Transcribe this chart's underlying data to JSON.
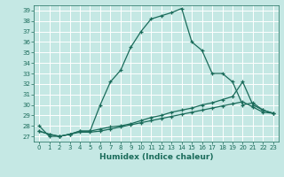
{
  "title": "",
  "xlabel": "Humidex (Indice chaleur)",
  "ylabel": "",
  "bg_color": "#c5e8e4",
  "line_color": "#1a6b5a",
  "grid_color": "#ffffff",
  "xlim": [
    -0.5,
    23.5
  ],
  "ylim": [
    26.5,
    39.5
  ],
  "yticks": [
    27,
    28,
    29,
    30,
    31,
    32,
    33,
    34,
    35,
    36,
    37,
    38,
    39
  ],
  "xticks": [
    0,
    1,
    2,
    3,
    4,
    5,
    6,
    7,
    8,
    9,
    10,
    11,
    12,
    13,
    14,
    15,
    16,
    17,
    18,
    19,
    20,
    21,
    22,
    23
  ],
  "line1_x": [
    0,
    1,
    2,
    3,
    4,
    5,
    6,
    7,
    8,
    9,
    10,
    11,
    12,
    13,
    14,
    15,
    16,
    17,
    18,
    19,
    20,
    21,
    22,
    23
  ],
  "line1_y": [
    28.0,
    27.0,
    27.0,
    27.2,
    27.5,
    27.5,
    30.0,
    32.2,
    33.3,
    35.5,
    37.0,
    38.2,
    38.5,
    38.8,
    39.2,
    36.0,
    35.2,
    33.0,
    33.0,
    32.2,
    30.0,
    30.2,
    29.5,
    29.2
  ],
  "line2_x": [
    0,
    1,
    2,
    3,
    4,
    5,
    6,
    7,
    8,
    9,
    10,
    11,
    12,
    13,
    14,
    15,
    16,
    17,
    18,
    19,
    20,
    21,
    22,
    23
  ],
  "line2_y": [
    27.5,
    27.2,
    27.0,
    27.2,
    27.5,
    27.5,
    27.7,
    27.9,
    28.0,
    28.2,
    28.5,
    28.8,
    29.0,
    29.3,
    29.5,
    29.7,
    30.0,
    30.2,
    30.5,
    30.8,
    32.2,
    30.0,
    29.5,
    29.2
  ],
  "line3_x": [
    0,
    1,
    2,
    3,
    4,
    5,
    6,
    7,
    8,
    9,
    10,
    11,
    12,
    13,
    14,
    15,
    16,
    17,
    18,
    19,
    20,
    21,
    22,
    23
  ],
  "line3_y": [
    27.5,
    27.2,
    27.0,
    27.2,
    27.4,
    27.4,
    27.5,
    27.7,
    27.9,
    28.1,
    28.3,
    28.5,
    28.7,
    28.9,
    29.1,
    29.3,
    29.5,
    29.7,
    29.9,
    30.1,
    30.3,
    29.8,
    29.3,
    29.2
  ],
  "label_fontsize": 5.0,
  "xlabel_fontsize": 6.5,
  "marker_size": 3.5,
  "linewidth": 0.9
}
